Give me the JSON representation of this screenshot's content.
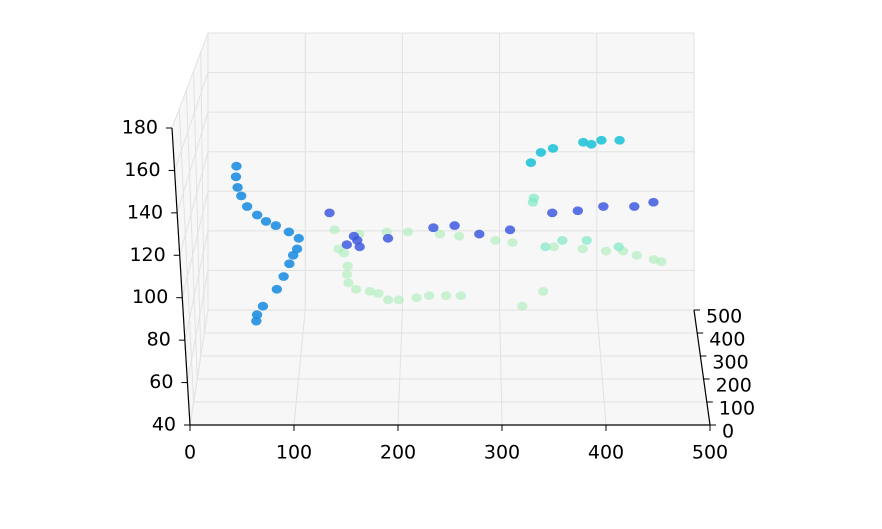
{
  "chart_data": {
    "type": "scatter",
    "projection": "3d",
    "title": "",
    "xlabel": "",
    "ylabel": "",
    "zlabel": "",
    "xlim": [
      0,
      500
    ],
    "ylim": [
      0,
      500
    ],
    "zlim": [
      40,
      180
    ],
    "grid": true,
    "legend": "none",
    "x_ticks": [
      "0",
      "100",
      "200",
      "300",
      "400",
      "500"
    ],
    "y_ticks": [
      "0",
      "100",
      "200",
      "300",
      "400",
      "500"
    ],
    "z_ticks": [
      "40",
      "60",
      "80",
      "100",
      "120",
      "140",
      "160",
      "180"
    ],
    "colors": {
      "deep_blue": "#3f5be0",
      "blue": "#1f8fe0",
      "cyan": "#22c4d8",
      "mint": "#7fe8c8",
      "pale_green": "#a8ecb8"
    },
    "points": [
      {
        "x": 58,
        "y": 0,
        "z": 162,
        "color": "blue"
      },
      {
        "x": 57,
        "y": 0,
        "z": 157,
        "color": "blue"
      },
      {
        "x": 58,
        "y": 0,
        "z": 152,
        "color": "blue"
      },
      {
        "x": 61,
        "y": 0,
        "z": 148,
        "color": "blue"
      },
      {
        "x": 66,
        "y": 0,
        "z": 143,
        "color": "blue"
      },
      {
        "x": 75,
        "y": 0,
        "z": 139,
        "color": "blue"
      },
      {
        "x": 83,
        "y": 0,
        "z": 136,
        "color": "blue"
      },
      {
        "x": 92,
        "y": 0,
        "z": 134,
        "color": "blue"
      },
      {
        "x": 104,
        "y": 0,
        "z": 131,
        "color": "blue"
      },
      {
        "x": 113,
        "y": 0,
        "z": 128,
        "color": "blue"
      },
      {
        "x": 111,
        "y": 0,
        "z": 123,
        "color": "blue"
      },
      {
        "x": 107,
        "y": 0,
        "z": 120,
        "color": "blue"
      },
      {
        "x": 103,
        "y": 0,
        "z": 116,
        "color": "blue"
      },
      {
        "x": 97,
        "y": 0,
        "z": 110,
        "color": "blue"
      },
      {
        "x": 90,
        "y": 0,
        "z": 104,
        "color": "blue"
      },
      {
        "x": 76,
        "y": 0,
        "z": 96,
        "color": "blue"
      },
      {
        "x": 70,
        "y": 0,
        "z": 92,
        "color": "blue"
      },
      {
        "x": 69,
        "y": 0,
        "z": 89,
        "color": "blue"
      },
      {
        "x": 335,
        "y": 0,
        "z": 147,
        "color": "mint"
      },
      {
        "x": 334,
        "y": 0,
        "z": 145,
        "color": "mint"
      },
      {
        "x": 345,
        "y": 0,
        "z": 124,
        "color": "mint"
      },
      {
        "x": 342,
        "y": 0,
        "z": 103,
        "color": "pale_green"
      },
      {
        "x": 322,
        "y": 0,
        "z": 96,
        "color": "pale_green"
      },
      {
        "x": 150,
        "y": 0,
        "z": 123,
        "color": "pale_green"
      },
      {
        "x": 155,
        "y": 0,
        "z": 121,
        "color": "pale_green"
      },
      {
        "x": 158,
        "y": 0,
        "z": 115,
        "color": "pale_green"
      },
      {
        "x": 157,
        "y": 0,
        "z": 111,
        "color": "pale_green"
      },
      {
        "x": 158,
        "y": 0,
        "z": 107,
        "color": "pale_green"
      },
      {
        "x": 165,
        "y": 0,
        "z": 104,
        "color": "pale_green"
      },
      {
        "x": 178,
        "y": 0,
        "z": 103,
        "color": "pale_green"
      },
      {
        "x": 186,
        "y": 0,
        "z": 102,
        "color": "pale_green"
      },
      {
        "x": 195,
        "y": 0,
        "z": 99,
        "color": "pale_green"
      },
      {
        "x": 205,
        "y": 0,
        "z": 99,
        "color": "pale_green"
      },
      {
        "x": 222,
        "y": 0,
        "z": 100,
        "color": "pale_green"
      },
      {
        "x": 234,
        "y": 0,
        "z": 101,
        "color": "pale_green"
      },
      {
        "x": 250,
        "y": 0,
        "z": 101,
        "color": "pale_green"
      },
      {
        "x": 264,
        "y": 0,
        "z": 101,
        "color": "pale_green"
      },
      {
        "x": 147,
        "y": 0,
        "z": 132,
        "color": "pale_green"
      },
      {
        "x": 170,
        "y": 0,
        "z": 130,
        "color": "pale_green"
      },
      {
        "x": 196,
        "y": 0,
        "z": 131,
        "color": "pale_green"
      },
      {
        "x": 216,
        "y": 0,
        "z": 131,
        "color": "pale_green"
      },
      {
        "x": 246,
        "y": 0,
        "z": 130,
        "color": "pale_green"
      },
      {
        "x": 264,
        "y": 0,
        "z": 129,
        "color": "pale_green"
      },
      {
        "x": 298,
        "y": 0,
        "z": 127,
        "color": "pale_green"
      },
      {
        "x": 314,
        "y": 0,
        "z": 126,
        "color": "pale_green"
      },
      {
        "x": 353,
        "y": 0,
        "z": 124,
        "color": "pale_green"
      },
      {
        "x": 380,
        "y": 0,
        "z": 123,
        "color": "pale_green"
      },
      {
        "x": 402,
        "y": 0,
        "z": 122,
        "color": "pale_green"
      },
      {
        "x": 418,
        "y": 0,
        "z": 122,
        "color": "pale_green"
      },
      {
        "x": 431,
        "y": 0,
        "z": 120,
        "color": "pale_green"
      },
      {
        "x": 447,
        "y": 0,
        "z": 118,
        "color": "pale_green"
      },
      {
        "x": 454,
        "y": 0,
        "z": 117,
        "color": "pale_green"
      },
      {
        "x": 361,
        "y": 0,
        "z": 127,
        "color": "mint"
      },
      {
        "x": 384,
        "y": 0,
        "z": 127,
        "color": "mint"
      },
      {
        "x": 414,
        "y": 0,
        "z": 124,
        "color": "mint"
      },
      {
        "x": 143,
        "y": 0,
        "z": 140,
        "color": "deep_blue"
      },
      {
        "x": 165,
        "y": 0,
        "z": 129,
        "color": "deep_blue"
      },
      {
        "x": 168,
        "y": 0,
        "z": 127,
        "color": "deep_blue"
      },
      {
        "x": 158,
        "y": 0,
        "z": 125,
        "color": "deep_blue"
      },
      {
        "x": 170,
        "y": 0,
        "z": 124,
        "color": "deep_blue"
      },
      {
        "x": 197,
        "y": 0,
        "z": 128,
        "color": "deep_blue"
      },
      {
        "x": 240,
        "y": 0,
        "z": 133,
        "color": "deep_blue"
      },
      {
        "x": 260,
        "y": 0,
        "z": 134,
        "color": "deep_blue"
      },
      {
        "x": 283,
        "y": 0,
        "z": 130,
        "color": "deep_blue"
      },
      {
        "x": 312,
        "y": 0,
        "z": 132,
        "color": "deep_blue"
      },
      {
        "x": 352,
        "y": 0,
        "z": 140,
        "color": "deep_blue"
      },
      {
        "x": 376,
        "y": 0,
        "z": 141,
        "color": "deep_blue"
      },
      {
        "x": 400,
        "y": 0,
        "z": 143,
        "color": "deep_blue"
      },
      {
        "x": 429,
        "y": 0,
        "z": 143,
        "color": "deep_blue"
      },
      {
        "x": 447,
        "y": 0,
        "z": 145,
        "color": "deep_blue"
      },
      {
        "x": 332,
        "y": 300,
        "z": 135,
        "color": "cyan"
      },
      {
        "x": 342,
        "y": 300,
        "z": 140,
        "color": "cyan"
      },
      {
        "x": 354,
        "y": 300,
        "z": 142,
        "color": "cyan"
      },
      {
        "x": 384,
        "y": 300,
        "z": 145,
        "color": "cyan"
      },
      {
        "x": 392,
        "y": 300,
        "z": 144,
        "color": "cyan"
      },
      {
        "x": 402,
        "y": 300,
        "z": 146,
        "color": "cyan"
      },
      {
        "x": 420,
        "y": 300,
        "z": 146,
        "color": "cyan"
      }
    ]
  }
}
